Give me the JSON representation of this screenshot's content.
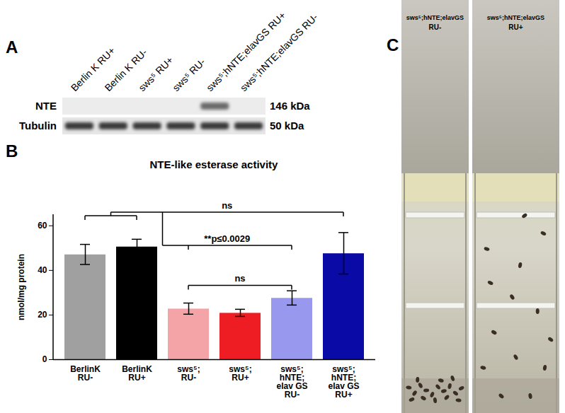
{
  "panel_labels": [
    "A",
    "B",
    "C"
  ],
  "blot": {
    "lanes": [
      "Berlin K RU+",
      "Berlin K RU-",
      "sws⁵ RU+",
      "sws⁵ RU-",
      "sws⁵;hNTE;elavGS RU+",
      "sws⁵;hNTE;elavGS RU-"
    ],
    "rows": [
      {
        "label": "NTE",
        "size": "146 kDa",
        "bands": [
          false,
          false,
          false,
          false,
          true,
          false
        ]
      },
      {
        "label": "Tubulin",
        "size": "50 kDa",
        "bands": [
          true,
          true,
          true,
          true,
          true,
          true
        ]
      }
    ]
  },
  "chart_data": {
    "type": "bar",
    "title": "NTE-like esterase activity",
    "ylabel": "nmol/mg protein",
    "categories": [
      "BerlinK\nRU-",
      "BerlinK\nRU+",
      "sws⁵;\nRU-",
      "sws⁵;\nRU+",
      "sws⁵;\nhNTE;\nelav GS\nRU-",
      "sws⁵;\nhNTE;\nelav GS\nRU+"
    ],
    "values": [
      47,
      50.5,
      22.7,
      20.8,
      27.5,
      47.5
    ],
    "errors": [
      4.5,
      3.3,
      2.5,
      1.6,
      3.2,
      9.3
    ],
    "colors": [
      "#a0a0a0",
      "#000000",
      "#f4a3a6",
      "#ee1d23",
      "#9898ee",
      "#0a0aa6"
    ],
    "ylim": [
      0,
      65
    ],
    "yticks": [
      0,
      20,
      40,
      60
    ],
    "annotations": [
      {
        "text": "ns",
        "left": [
          "BerlinK\nRU-",
          "BerlinK\nRU+"
        ],
        "right": [
          "sws⁵;\nhNTE;\nelav GS\nRU+"
        ]
      },
      {
        "text": "**p≤0.0029",
        "left": [
          "BerlinK\nRU-",
          "BerlinK\nRU+"
        ],
        "right": [
          "sws⁵;\nRU-",
          "sws⁵;\nRU+",
          "sws⁵;\nhNTE;\nelav GS\nRU-"
        ]
      },
      {
        "text": "ns",
        "left": [
          "sws⁵;\nRU-"
        ],
        "right": [
          "sws⁵;\nhNTE;\nelav GS\nRU-"
        ]
      }
    ]
  },
  "photos": [
    {
      "label": "sws⁵;hNTE;elavGS",
      "condition": "RU-"
    },
    {
      "label": "sws⁵;hNTE;elavGS",
      "condition": "RU+"
    }
  ]
}
